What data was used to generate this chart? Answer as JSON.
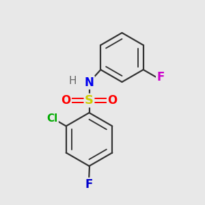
{
  "bg_color": "#e8e8e8",
  "bond_color": "#333333",
  "bond_width": 1.6,
  "atom_colors": {
    "S": "#cccc00",
    "N": "#0000ee",
    "O": "#ff0000",
    "Cl": "#00aa00",
    "F_bottom": "#0000cc",
    "F_top": "#cc00cc",
    "H": "#666666",
    "C": "#333333"
  },
  "font_size_atoms": 11
}
